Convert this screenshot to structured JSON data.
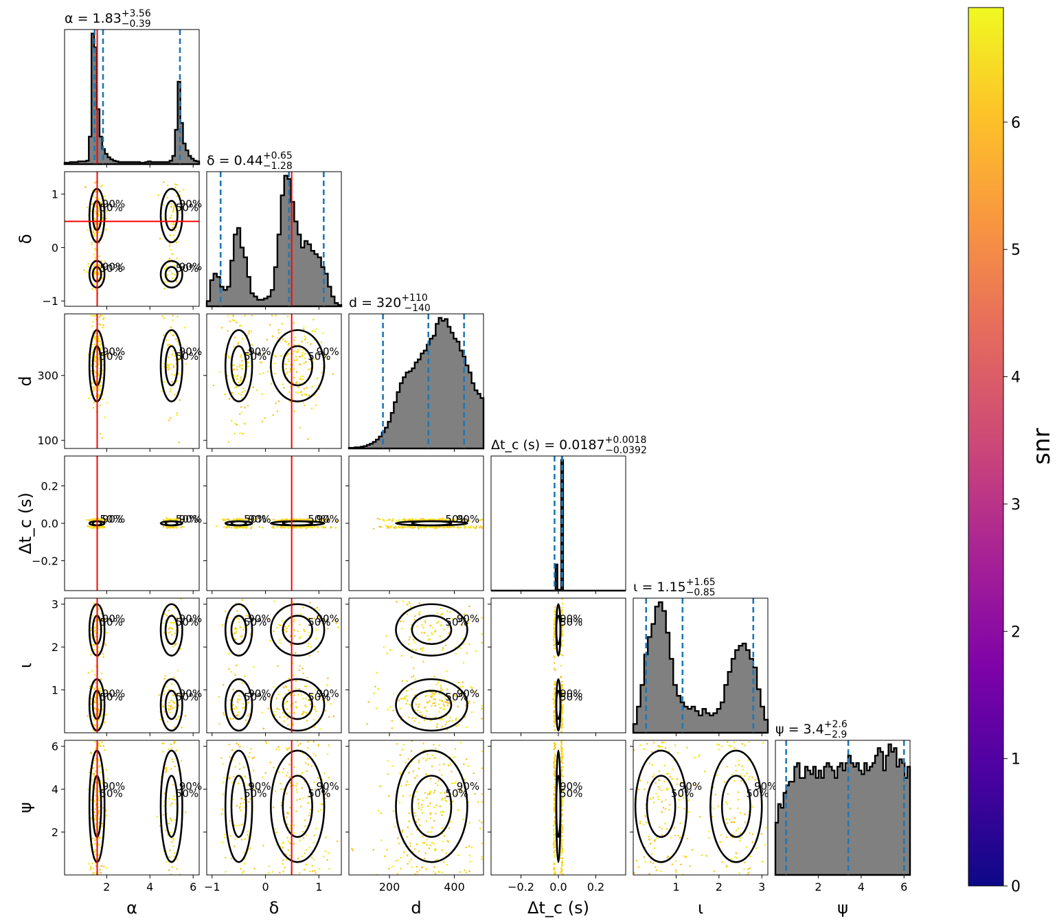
{
  "chart_data": {
    "type": "corner",
    "colorbar": {
      "label": "snr",
      "ticks": [
        0,
        1,
        2,
        3,
        4,
        5,
        6
      ],
      "range": [
        0,
        6.9
      ],
      "colormap": "plasma"
    },
    "parameters": [
      {
        "key": "alpha",
        "axis_label": "α",
        "title": "α = 1.83",
        "title_sup": "+3.56",
        "title_sub": "−0.39",
        "range": [
          0.05,
          6.28
        ],
        "ticks": [
          2,
          4,
          6
        ],
        "tick_labels": [
          "2",
          "4",
          "6"
        ],
        "quantiles": [
          1.83,
          1.44,
          5.39
        ],
        "truth": 1.56
      },
      {
        "key": "delta",
        "axis_label": "δ",
        "title": "δ = 0.44",
        "title_sup": "+0.65",
        "title_sub": "−1.28",
        "range": [
          -1.1,
          1.42
        ],
        "ticks": [
          -1,
          0,
          1
        ],
        "tick_labels": [
          "−1",
          "0",
          "1"
        ],
        "quantiles": [
          0.44,
          -0.84,
          1.09
        ],
        "truth": 0.49
      },
      {
        "key": "d",
        "axis_label": "d",
        "title": "d = 320",
        "title_sup": "+110",
        "title_sub": "−140",
        "range": [
          75,
          490
        ],
        "ticks": [
          100,
          300
        ],
        "tick_labels": [
          "100",
          "300"
        ],
        "x_ticks": [
          200,
          400
        ],
        "x_tick_labels": [
          "200",
          "400"
        ],
        "quantiles": [
          320,
          180,
          430
        ],
        "truth": null
      },
      {
        "key": "dtc",
        "axis_label": "Δt_c (s)",
        "title": "Δt_c (s) = 0.0187",
        "title_sup": "+0.0018",
        "title_sub": "−0.0392",
        "range": [
          -0.36,
          0.36
        ],
        "ticks": [
          -0.2,
          0.0,
          0.2
        ],
        "tick_labels": [
          "−0.2",
          "0.0",
          "0.2"
        ],
        "quantiles": [
          0.0187,
          -0.0205,
          0.0205
        ],
        "truth": null
      },
      {
        "key": "iota",
        "axis_label": "ι",
        "title": "ι = 1.15",
        "title_sup": "+1.65",
        "title_sub": "−0.85",
        "range": [
          0.0,
          3.14
        ],
        "ticks": [
          1,
          2,
          3
        ],
        "tick_labels": [
          "1",
          "2",
          "3"
        ],
        "quantiles": [
          1.15,
          0.3,
          2.8
        ],
        "truth": null
      },
      {
        "key": "psi",
        "axis_label": "ψ",
        "title": "ψ = 3.4",
        "title_sup": "+2.6",
        "title_sub": "−2.9",
        "range": [
          0.0,
          6.28
        ],
        "ticks": [
          2,
          4,
          6
        ],
        "tick_labels": [
          "2",
          "4",
          "6"
        ],
        "quantiles": [
          3.4,
          0.5,
          6.0
        ],
        "truth": null
      }
    ],
    "histograms": {
      "alpha": [
        2,
        2,
        3,
        3,
        3,
        4,
        4,
        4,
        5,
        40,
        190,
        170,
        80,
        40,
        22,
        15,
        10,
        7,
        5,
        4,
        3,
        3,
        3,
        3,
        3,
        3,
        3,
        3,
        2,
        2,
        3,
        4,
        3,
        3,
        3,
        3,
        3,
        3,
        3,
        5,
        12,
        50,
        120,
        60,
        30,
        20,
        12,
        8,
        5,
        4
      ],
      "delta": [
        8,
        40,
        50,
        45,
        30,
        25,
        30,
        70,
        110,
        120,
        90,
        75,
        45,
        20,
        15,
        10,
        10,
        12,
        15,
        25,
        60,
        110,
        170,
        200,
        195,
        160,
        130,
        110,
        90,
        100,
        95,
        85,
        80,
        75,
        60,
        50,
        30,
        15,
        5,
        2
      ],
      "d": [
        1,
        1,
        2,
        2,
        3,
        4,
        6,
        8,
        11,
        15,
        20,
        27,
        35,
        45,
        60,
        78,
        95,
        110,
        120,
        128,
        130,
        135,
        145,
        150,
        160,
        165,
        175,
        185,
        190,
        210,
        220,
        215,
        218,
        205,
        195,
        185,
        180,
        165,
        155,
        140,
        128,
        110,
        98,
        92,
        85
      ],
      "dtc": [
        0,
        0,
        0,
        0,
        0,
        0,
        0,
        0,
        0,
        0,
        0,
        0,
        0,
        0,
        0,
        0,
        0,
        0,
        0,
        0,
        0,
        0,
        0,
        0,
        0,
        0,
        0,
        0,
        0,
        0,
        0,
        0,
        0,
        0,
        60,
        2,
        2,
        300,
        0,
        0,
        0,
        0,
        0,
        0,
        0,
        0,
        0,
        0,
        0,
        0,
        0,
        0,
        0,
        0,
        0,
        0,
        0,
        0,
        0,
        0,
        0,
        0,
        0,
        0,
        0,
        0,
        0,
        0,
        0,
        0,
        0
      ],
      "iota": [
        20,
        60,
        110,
        180,
        220,
        250,
        290,
        300,
        280,
        230,
        170,
        110,
        85,
        70,
        60,
        55,
        60,
        50,
        40,
        55,
        45,
        40,
        45,
        55,
        70,
        110,
        140,
        170,
        190,
        200,
        205,
        190,
        170,
        150,
        100,
        60,
        30
      ],
      "psi": [
        70,
        95,
        90,
        110,
        120,
        125,
        125,
        145,
        150,
        130,
        130,
        145,
        140,
        135,
        145,
        130,
        140,
        130,
        145,
        150,
        145,
        140,
        130,
        145,
        150,
        140,
        150,
        160,
        150,
        145,
        150,
        140,
        135,
        150,
        140,
        145,
        150,
        160,
        170,
        165,
        140,
        160,
        175,
        165,
        170,
        145,
        155,
        150,
        130,
        145
      ]
    },
    "contour_labels": [
      "50%",
      "90%"
    ]
  }
}
